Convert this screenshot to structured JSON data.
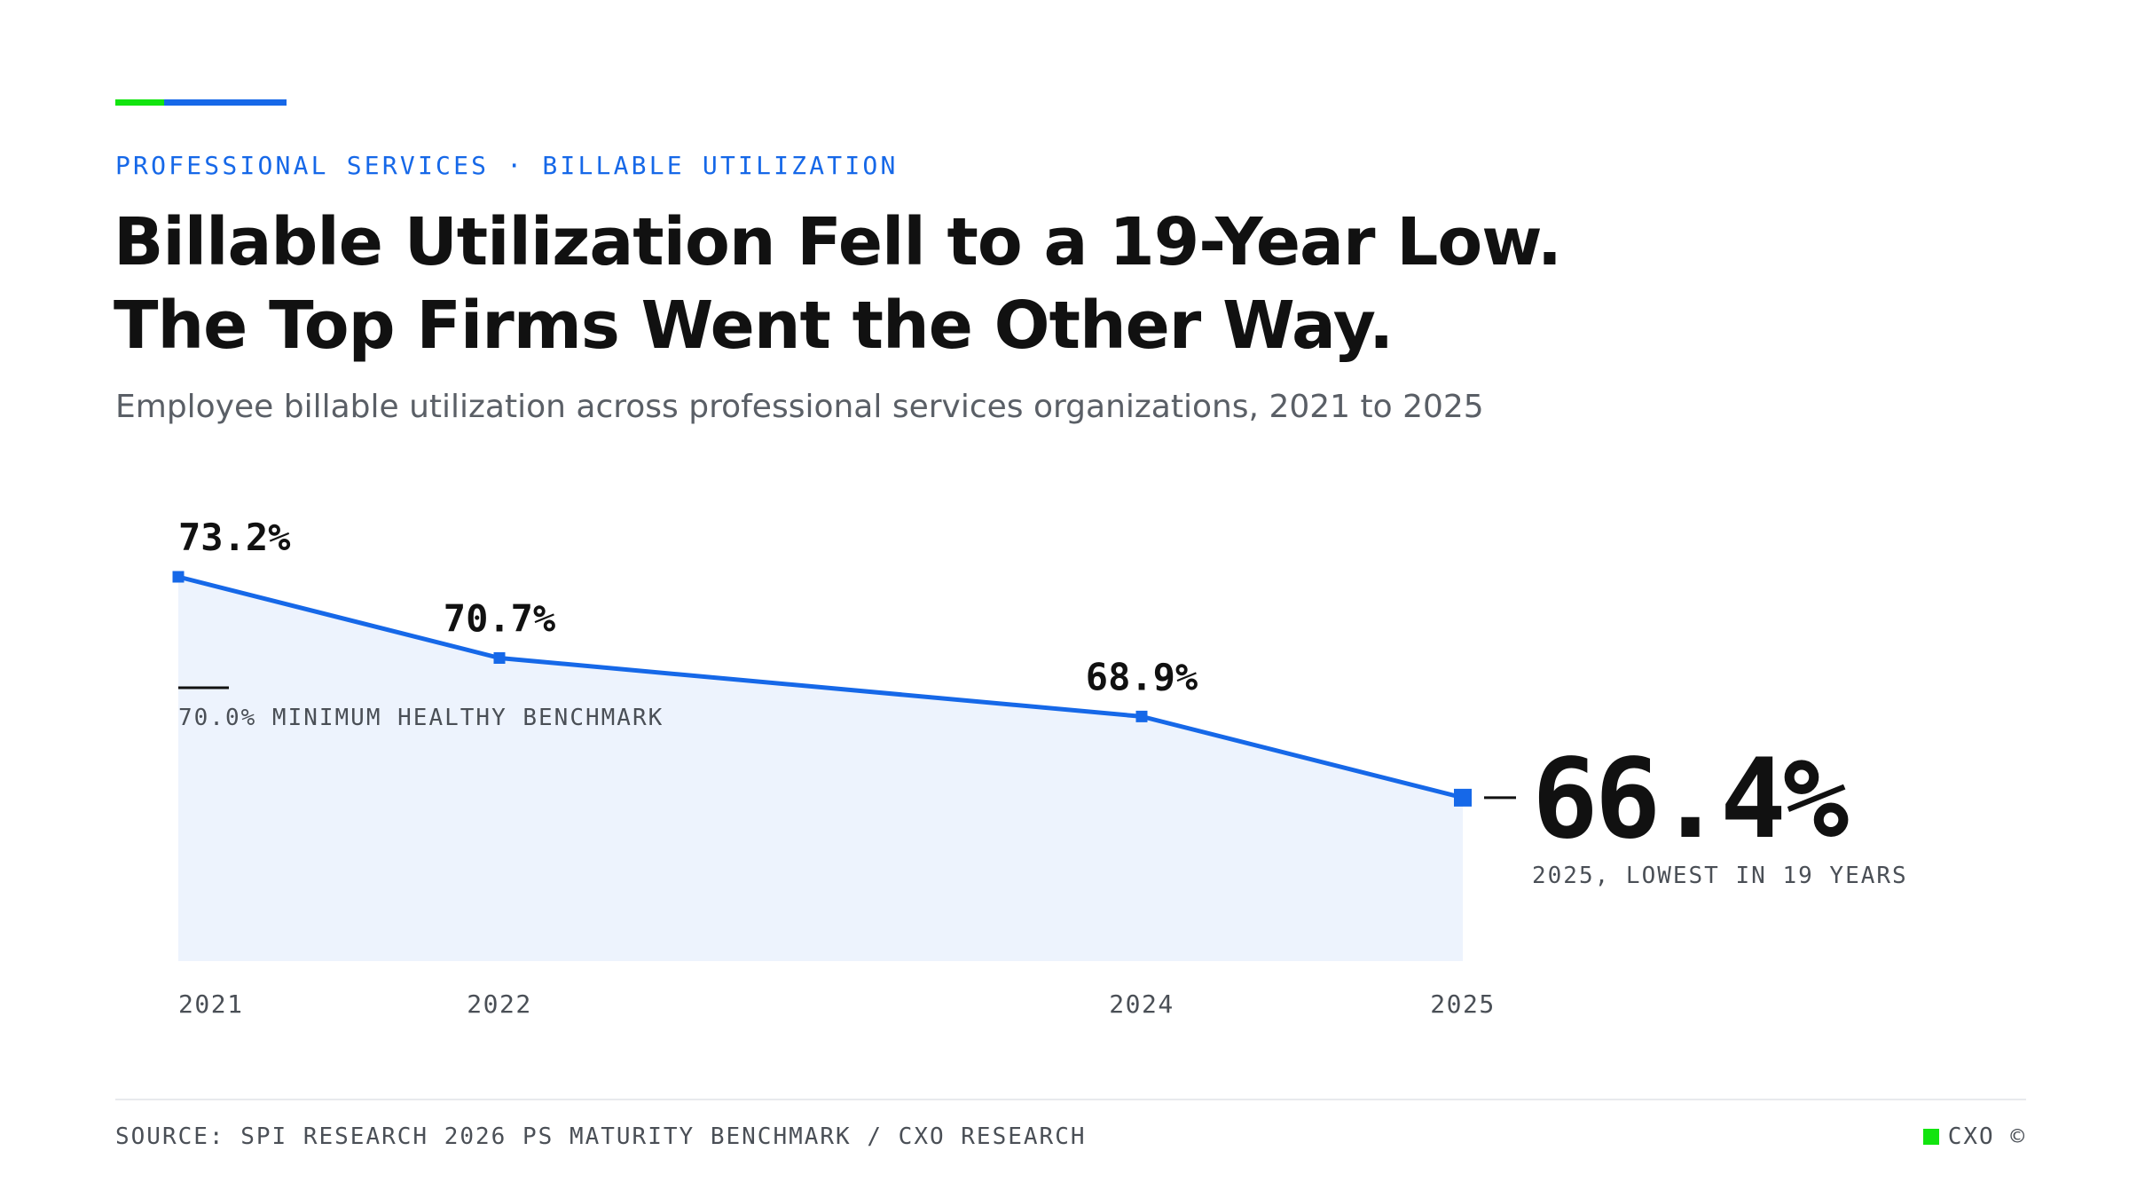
{
  "header": {
    "eyebrow": "PROFESSIONAL SERVICES · BILLABLE UTILIZATION",
    "title_line1": "Billable Utilization Fell to a 19-Year Low.",
    "title_line2": "The Top Firms Went the Other Way.",
    "subtitle": "Employee billable utilization across professional services organizations, 2021 to 2025"
  },
  "colors": {
    "accent_green": "#12e40f",
    "accent_blue": "#1668e8",
    "line": "#1668e8",
    "area": "#edf3fd",
    "text": "#111111",
    "muted": "#4a4f56"
  },
  "chart_data": {
    "type": "area",
    "x": [
      "2021",
      "2022",
      "2024",
      "2025"
    ],
    "values": [
      73.2,
      70.7,
      68.9,
      66.4
    ],
    "data_labels": [
      "73.2%",
      "70.7%",
      "68.9%",
      "66.4%"
    ],
    "ylim": [
      62,
      75
    ],
    "grid": false,
    "legend": "none",
    "benchmark": {
      "value": 70.0,
      "label": "70.0% MINIMUM HEALTHY BENCHMARK"
    },
    "highlight": {
      "value_label": "66.4%",
      "caption": "2025, LOWEST IN 19 YEARS"
    }
  },
  "footer": {
    "source": "SOURCE: SPI RESEARCH 2026 PS MATURITY BENCHMARK / CXO RESEARCH",
    "brand": "CXO ©"
  }
}
